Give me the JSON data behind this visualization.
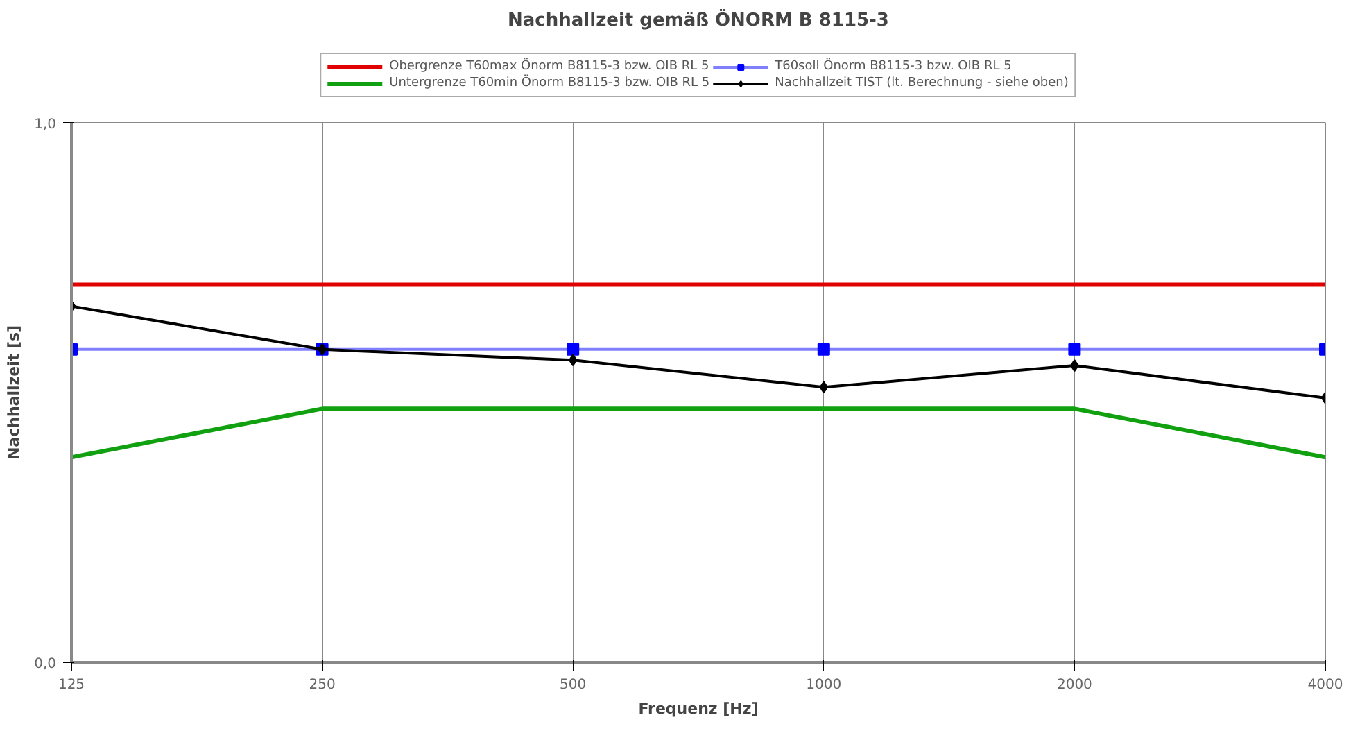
{
  "chart_data": {
    "type": "line",
    "title": "Nachhallzeit gemäß ÖNORM B 8115-3",
    "xlabel": "Frequenz [Hz]",
    "ylabel": "Nachhallzeit [s]",
    "categories": [
      "125",
      "250",
      "500",
      "1000",
      "2000",
      "4000"
    ],
    "ylim": [
      0,
      1
    ],
    "yticks": [
      {
        "value": 0,
        "label": "0,0"
      },
      {
        "value": 1,
        "label": "1,0"
      }
    ],
    "grid": "x",
    "legend": "top",
    "series": [
      {
        "name": "Obergrenze T60max Önorm B8115-3 bzw. OIB RL 5",
        "color": "#e00000",
        "marker": "none",
        "values": [
          0.7,
          0.7,
          0.7,
          0.7,
          0.7,
          0.7
        ]
      },
      {
        "name": "Untergrenze T60min Önorm B8115-3 bzw. OIB RL 5",
        "color": "#10a010",
        "marker": "none",
        "values": [
          0.38,
          0.47,
          0.47,
          0.47,
          0.47,
          0.38
        ]
      },
      {
        "name": "T60soll Önorm B8115-3 bzw. OIB RL 5",
        "color": "#0000ff",
        "marker": "square",
        "values": [
          0.58,
          0.58,
          0.58,
          0.58,
          0.58,
          0.58
        ]
      },
      {
        "name": "Nachhallzeit TIST (lt. Berechnung - siehe oben)",
        "color": "#000000",
        "marker": "diamond",
        "values": [
          0.66,
          0.58,
          0.56,
          0.51,
          0.55,
          0.49
        ]
      }
    ]
  }
}
